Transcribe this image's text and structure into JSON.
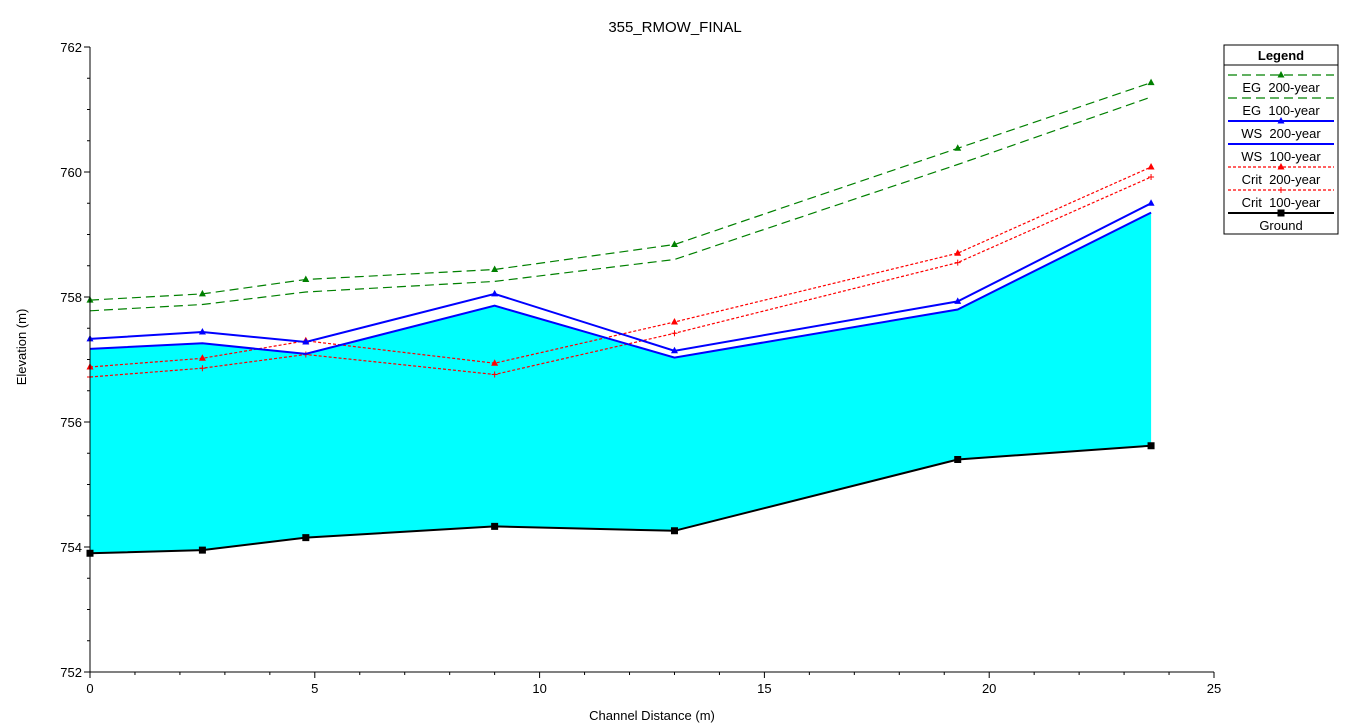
{
  "chart_data": {
    "type": "line",
    "title": "355_RMOW_FINAL",
    "xlabel": "Channel Distance (m)",
    "ylabel": "Elevation (m)",
    "xlim": [
      0,
      25
    ],
    "ylim": [
      752,
      762
    ],
    "xticks": [
      0,
      5,
      10,
      15,
      20,
      25
    ],
    "yticks": [
      752,
      754,
      756,
      758,
      760,
      762
    ],
    "grid": false,
    "legend": {
      "title": "Legend",
      "position": "top-right"
    },
    "x": [
      0,
      2.5,
      4.8,
      9.0,
      13.0,
      19.3,
      23.6
    ],
    "series": [
      {
        "name": "EG  200-year",
        "color": "#008000",
        "dash": "long",
        "marker": "triangle",
        "values": [
          757.95,
          758.05,
          758.28,
          758.44,
          758.84,
          760.38,
          761.43
        ]
      },
      {
        "name": "EG  100-year",
        "color": "#008000",
        "dash": "long",
        "marker": "none",
        "values": [
          757.78,
          757.88,
          758.08,
          758.25,
          758.6,
          760.12,
          761.2
        ]
      },
      {
        "name": "WS  200-year",
        "color": "#0000ff",
        "dash": "solid",
        "marker": "triangle",
        "values": [
          757.33,
          757.44,
          757.28,
          758.05,
          757.14,
          757.93,
          759.5
        ]
      },
      {
        "name": "WS  100-year",
        "color": "#0000ff",
        "dash": "solid",
        "marker": "none",
        "fill": "#00ffff",
        "values": [
          757.17,
          757.26,
          757.09,
          757.86,
          757.03,
          757.8,
          759.35
        ]
      },
      {
        "name": "Crit  200-year",
        "color": "#ff0000",
        "dash": "short",
        "marker": "triangle",
        "values": [
          756.88,
          757.02,
          757.3,
          756.94,
          757.6,
          758.7,
          760.08
        ]
      },
      {
        "name": "Crit  100-year",
        "color": "#ff0000",
        "dash": "short",
        "marker": "plus",
        "values": [
          756.72,
          756.86,
          757.08,
          756.76,
          757.42,
          758.55,
          759.92
        ]
      },
      {
        "name": "Ground",
        "color": "#000000",
        "dash": "solid",
        "marker": "square",
        "values": [
          753.9,
          753.95,
          754.15,
          754.33,
          754.26,
          755.4,
          755.62
        ]
      }
    ]
  }
}
